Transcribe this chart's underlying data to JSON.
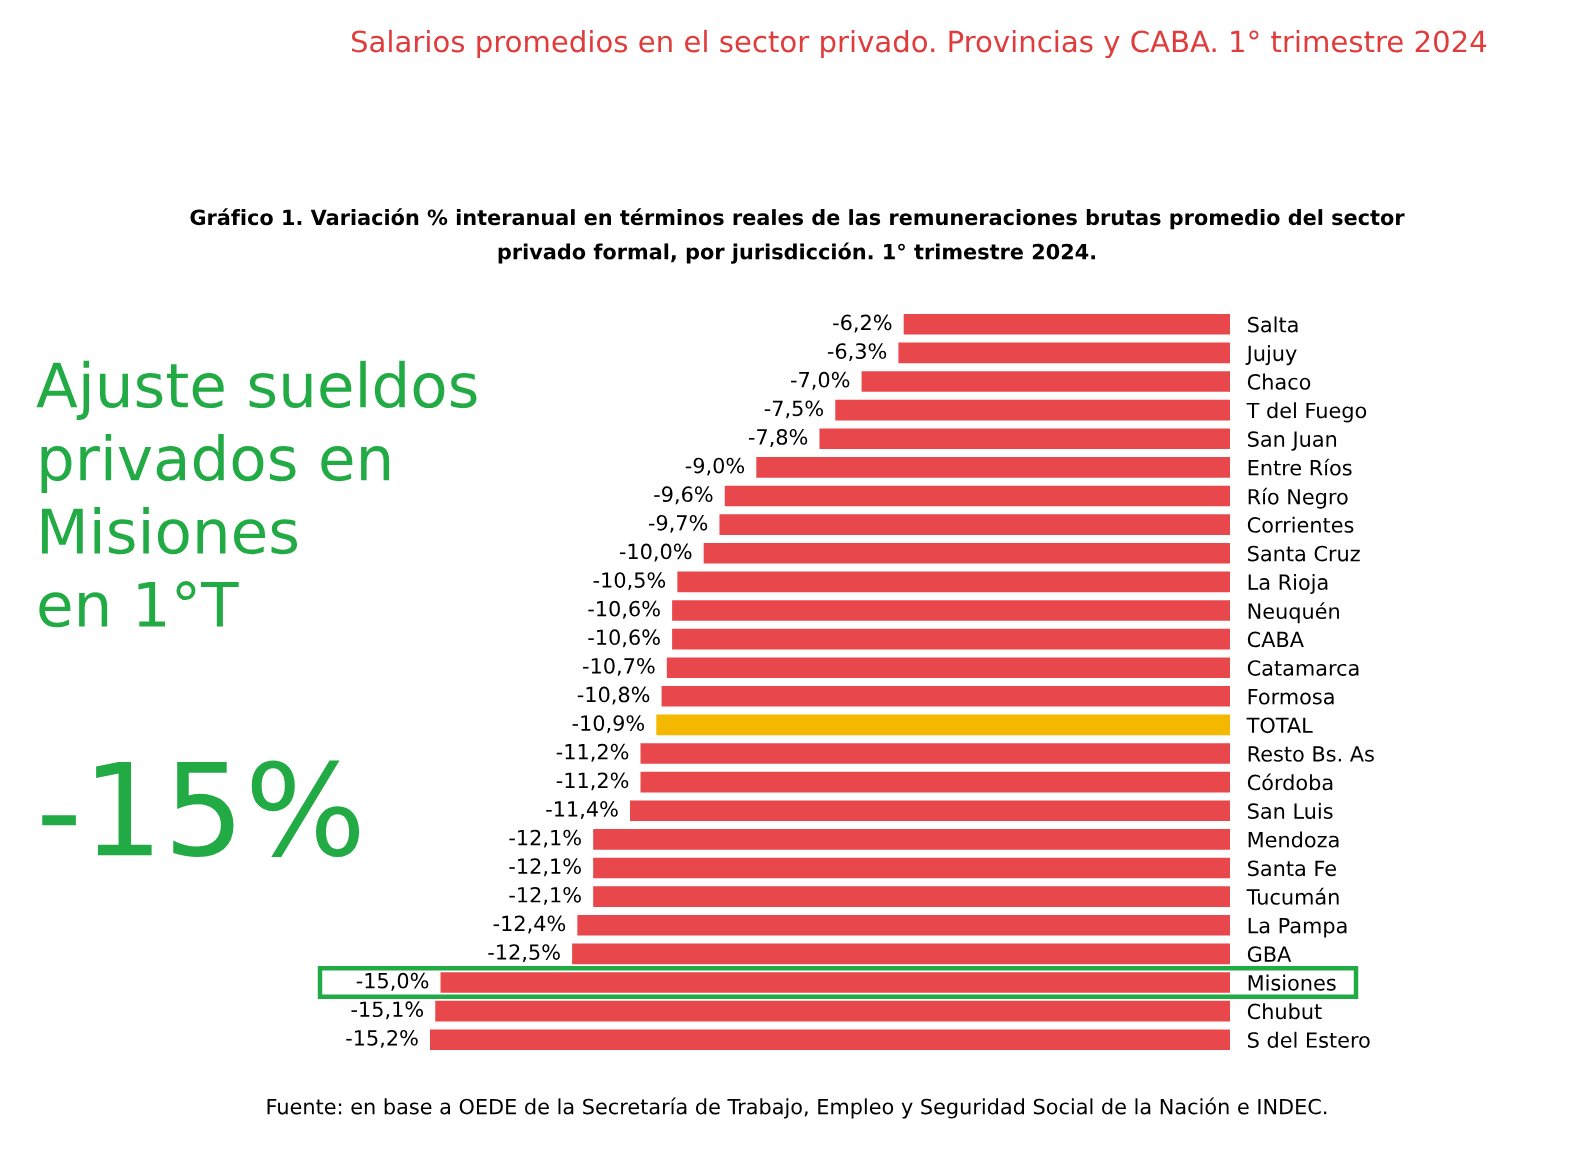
{
  "chart_data": {
    "type": "bar",
    "orientation": "horizontal",
    "title": "Salarios promedios en el sector privado. Provincias y CABA. 1° trimestre 2024",
    "subtitle": "Gráfico 1. Variación % interanual en términos reales de las remuneraciones brutas promedio del sector\nprivado formal, por jurisdicción. 1° trimestre 2024.",
    "categories": [
      "Salta",
      "Jujuy",
      "Chaco",
      "T del Fuego",
      "San Juan",
      "Entre Ríos",
      "Río Negro",
      "Corrientes",
      "Santa Cruz",
      "La Rioja",
      "Neuquén",
      "CABA",
      "Catamarca",
      "Formosa",
      "TOTAL",
      "Resto Bs. As",
      "Córdoba",
      "San Luis",
      "Mendoza",
      "Santa Fe",
      "Tucumán",
      "La Pampa",
      "GBA",
      "Misiones",
      "Chubut",
      "S del Estero"
    ],
    "values": [
      -6.2,
      -6.3,
      -7.0,
      -7.5,
      -7.8,
      -9.0,
      -9.6,
      -9.7,
      -10.0,
      -10.5,
      -10.6,
      -10.6,
      -10.7,
      -10.8,
      -10.9,
      -11.2,
      -11.2,
      -11.4,
      -12.1,
      -12.1,
      -12.1,
      -12.4,
      -12.5,
      -15.0,
      -15.1,
      -15.2
    ],
    "value_labels": [
      "-6,2%",
      "-6,3%",
      "-7,0%",
      "-7,5%",
      "-7,8%",
      "-9,0%",
      "-9,6%",
      "-9,7%",
      "-10,0%",
      "-10,5%",
      "-10,6%",
      "-10,6%",
      "-10,7%",
      "-10,8%",
      "-10,9%",
      "-11,2%",
      "-11,2%",
      "-11,4%",
      "-12,1%",
      "-12,1%",
      "-12,1%",
      "-12,4%",
      "-12,5%",
      "-15,0%",
      "-15,1%",
      "-15,2%"
    ],
    "colors": [
      "#e8484b",
      "#e8484b",
      "#e8484b",
      "#e8484b",
      "#e8484b",
      "#e8484b",
      "#e8484b",
      "#e8484b",
      "#e8484b",
      "#e8484b",
      "#e8484b",
      "#e8484b",
      "#e8484b",
      "#e8484b",
      "#f5b800",
      "#e8484b",
      "#e8484b",
      "#e8484b",
      "#e8484b",
      "#e8484b",
      "#e8484b",
      "#e8484b",
      "#e8484b",
      "#e8484b",
      "#e8484b",
      "#e8484b"
    ],
    "tick_labels": "y",
    "grid": false,
    "legend": false,
    "annotations": [
      "Ajuste sueldos\nprivados en\nMisiones\nen 1°T",
      "-15%",
      "Fuente: en base a OEDE de la Secretaría de Trabajo, Empleo y Seguridad Social de la Nación e INDEC."
    ]
  }
}
